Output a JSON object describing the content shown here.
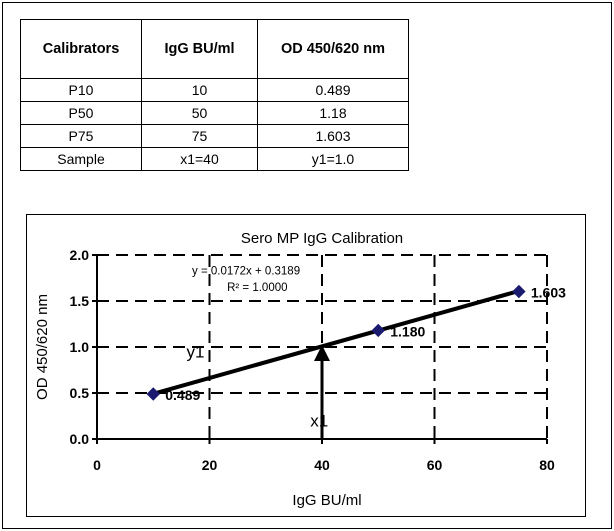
{
  "table": {
    "headers": [
      "Calibrators",
      "IgG BU/ml",
      "OD 450/620 nm"
    ],
    "rows": [
      [
        "P10",
        "10",
        "0.489"
      ],
      [
        "P50",
        "50",
        "1.18"
      ],
      [
        "P75",
        "75",
        "1.603"
      ],
      [
        "Sample",
        "x1=40",
        "y1=1.0"
      ]
    ]
  },
  "chart_data": {
    "type": "scatter",
    "title": "Sero MP IgG Calibration",
    "xlabel": "IgG BU/ml",
    "ylabel": "OD 450/620 nm",
    "xlim": [
      0,
      80
    ],
    "ylim": [
      0,
      2.0
    ],
    "x_ticks": [
      "0",
      "20",
      "40",
      "60",
      "80"
    ],
    "y_ticks": [
      "0.0",
      "0.5",
      "1.0",
      "1.5",
      "2.0"
    ],
    "grid": true,
    "points": [
      {
        "x": 10,
        "y": 0.489,
        "label": "0.489"
      },
      {
        "x": 50,
        "y": 1.18,
        "label": "1.180"
      },
      {
        "x": 75,
        "y": 1.603,
        "label": "1.603"
      }
    ],
    "trendline": {
      "slope": 0.0172,
      "intercept": 0.3189,
      "x_range": [
        10,
        75
      ]
    },
    "equation": "y = 0.0172x + 0.3189",
    "r_squared": "R² = 1.0000",
    "sample": {
      "x": 40,
      "y": 1.0,
      "x_label": "x1",
      "y_label": "y1"
    },
    "colors": {
      "marker": "#1a1a6e",
      "line": "#000000"
    }
  }
}
